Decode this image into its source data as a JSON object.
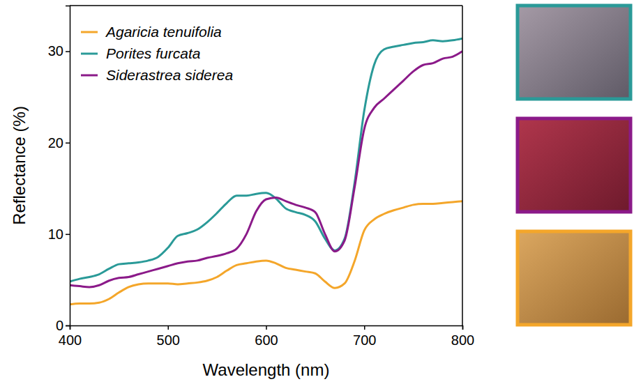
{
  "chart_data": {
    "type": "line",
    "x_label": "Wavelength (nm)",
    "y_label": "Reflectance (%)",
    "x": [
      400,
      410,
      420,
      430,
      440,
      450,
      460,
      470,
      480,
      490,
      500,
      510,
      520,
      530,
      540,
      550,
      560,
      570,
      580,
      590,
      600,
      610,
      620,
      630,
      640,
      650,
      660,
      670,
      680,
      690,
      700,
      710,
      720,
      730,
      740,
      750,
      760,
      770,
      780,
      790,
      800
    ],
    "xlim": [
      400,
      800
    ],
    "xticks": [
      400,
      500,
      600,
      700,
      800
    ],
    "ylim": [
      0,
      35
    ],
    "yticks": [
      0,
      10,
      20,
      30
    ],
    "legend": "upper left",
    "series": [
      {
        "name": "Agaricia tenuifolia",
        "color": "#f4a62a",
        "values": [
          2.3,
          2.4,
          2.4,
          2.5,
          2.9,
          3.6,
          4.2,
          4.5,
          4.6,
          4.6,
          4.6,
          4.5,
          4.6,
          4.7,
          4.9,
          5.3,
          6.0,
          6.6,
          6.8,
          7.0,
          7.1,
          6.8,
          6.3,
          6.1,
          5.9,
          5.7,
          4.8,
          4.1,
          4.6,
          7.0,
          10.4,
          11.6,
          12.2,
          12.6,
          12.9,
          13.2,
          13.3,
          13.3,
          13.4,
          13.5,
          13.6
        ]
      },
      {
        "name": "Porites furcata",
        "color": "#2a9a98",
        "values": [
          4.8,
          5.1,
          5.3,
          5.6,
          6.2,
          6.7,
          6.8,
          6.9,
          7.1,
          7.5,
          8.5,
          9.8,
          10.1,
          10.5,
          11.3,
          12.3,
          13.4,
          14.2,
          14.2,
          14.4,
          14.5,
          13.9,
          12.8,
          12.4,
          12.1,
          11.4,
          9.5,
          8.2,
          9.5,
          15.5,
          23.5,
          28.5,
          30.2,
          30.5,
          30.7,
          30.9,
          31.0,
          31.2,
          31.1,
          31.2,
          31.4
        ]
      },
      {
        "name": "Siderastrea siderea",
        "color": "#8b1a89",
        "values": [
          4.4,
          4.3,
          4.2,
          4.4,
          4.9,
          5.2,
          5.3,
          5.6,
          5.9,
          6.2,
          6.5,
          6.8,
          7.0,
          7.1,
          7.4,
          7.6,
          7.9,
          8.4,
          10.0,
          12.5,
          13.8,
          14.0,
          13.6,
          13.2,
          12.9,
          12.4,
          10.0,
          8.1,
          9.3,
          15.0,
          21.5,
          23.8,
          24.8,
          25.8,
          26.8,
          27.8,
          28.5,
          28.7,
          29.2,
          29.4,
          30.0
        ]
      }
    ]
  }
}
